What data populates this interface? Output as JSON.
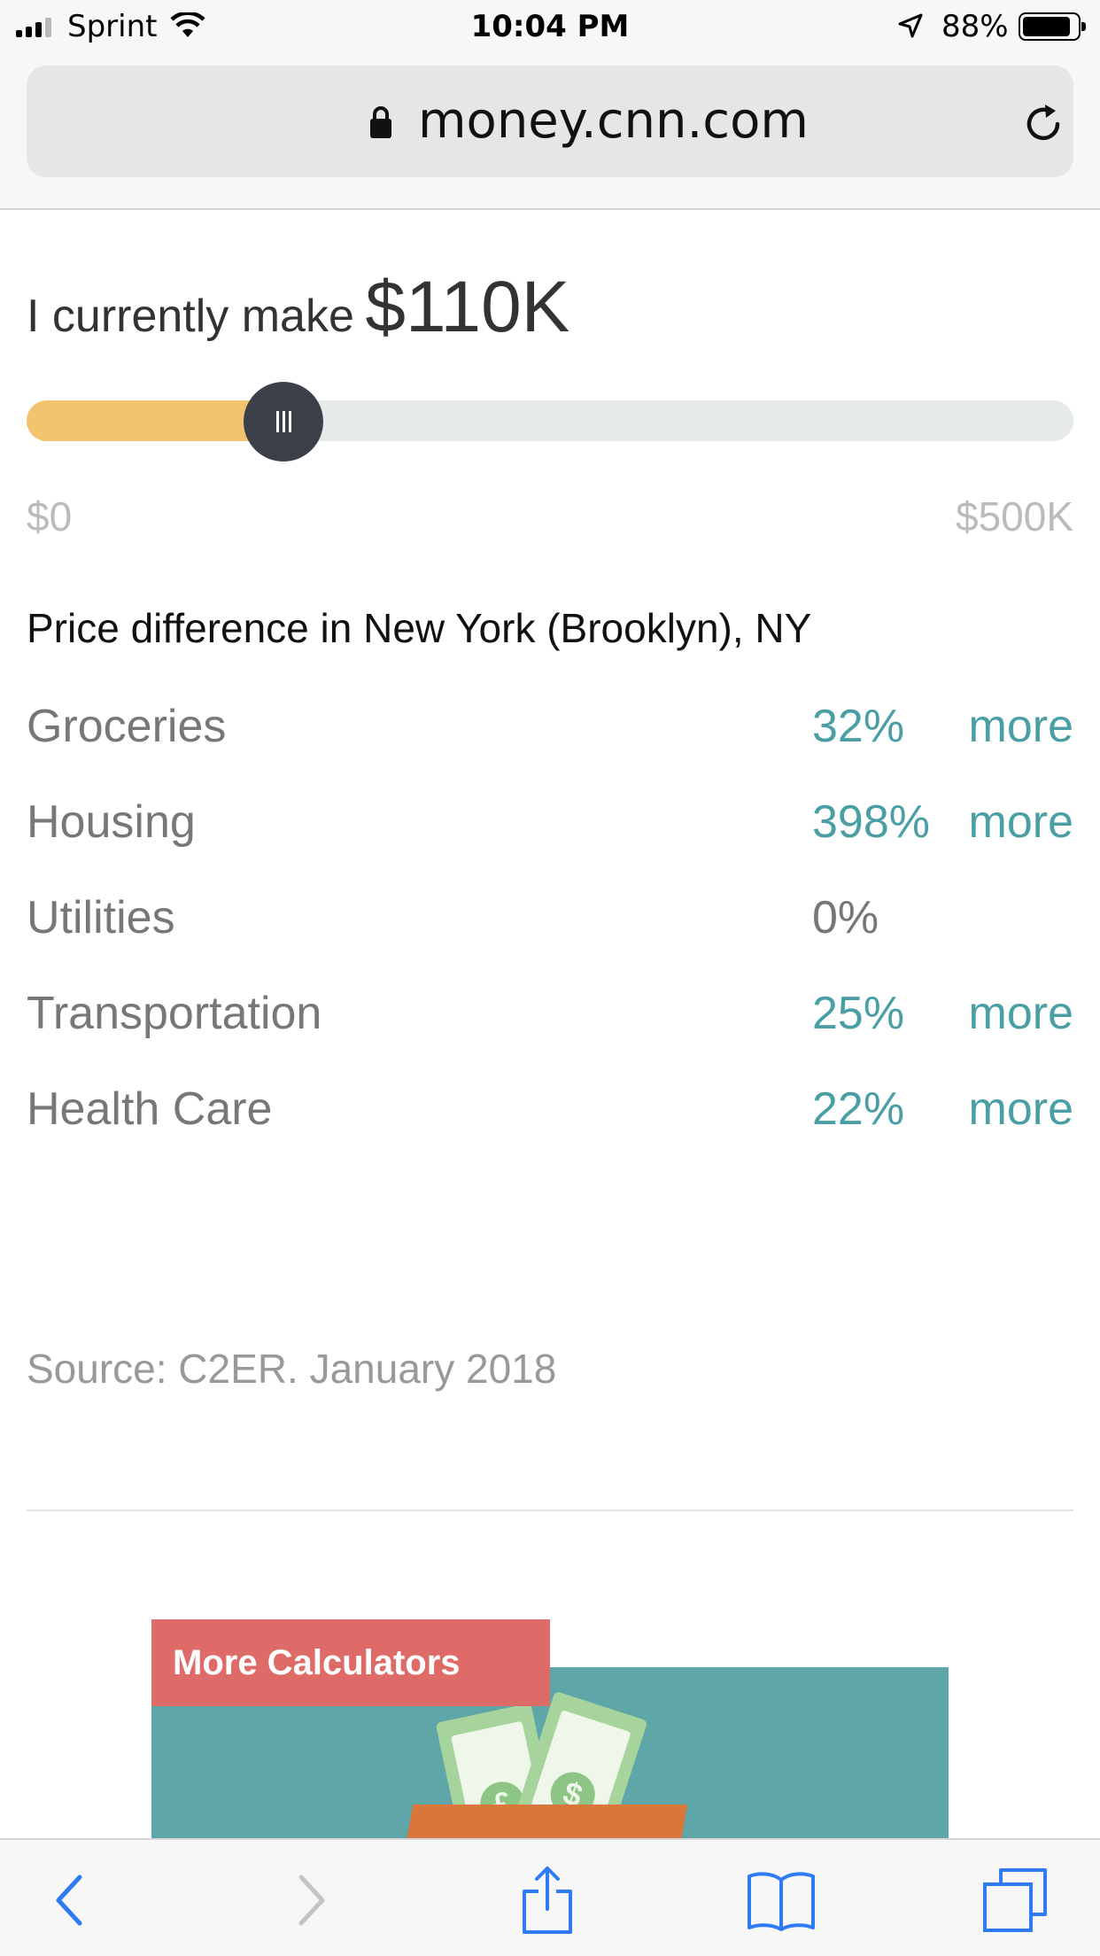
{
  "status_bar": {
    "carrier": "Sprint",
    "time": "10:04 PM",
    "battery": "88%",
    "battery_level": 0.88,
    "signal_bars": 3,
    "icons": [
      "signal-icon",
      "wifi-icon",
      "location-arrow-icon",
      "battery-icon"
    ]
  },
  "browser": {
    "url": "money.cnn.com",
    "icons": [
      "lock-icon",
      "reload-icon"
    ]
  },
  "income": {
    "label": "I currently make",
    "value": "$110K",
    "slider": {
      "min_label": "$0",
      "max_label": "$500K",
      "min": 0,
      "max": 500000,
      "value": 110000
    }
  },
  "comparison": {
    "heading": "Price difference in New York (Brooklyn), NY",
    "rows": [
      {
        "category": "Groceries",
        "percent": "32%",
        "direction": "more"
      },
      {
        "category": "Housing",
        "percent": "398%",
        "direction": "more"
      },
      {
        "category": "Utilities",
        "percent": "0%",
        "direction": ""
      },
      {
        "category": "Transportation",
        "percent": "25%",
        "direction": "more"
      },
      {
        "category": "Health Care",
        "percent": "22%",
        "direction": "more"
      }
    ]
  },
  "source": "Source: C2ER. January 2018",
  "promo": {
    "tag": "More Calculators",
    "bill_symbols": [
      "£",
      "$"
    ]
  },
  "toolbar": {
    "icons": [
      "back-icon",
      "forward-icon",
      "share-icon",
      "bookmarks-icon",
      "tabs-icon"
    ]
  },
  "colors": {
    "accent_teal": "#4a9fa5",
    "slider_fill": "#f2c46e",
    "promo_red": "#de6b67",
    "ios_blue": "#2f7bf5"
  }
}
